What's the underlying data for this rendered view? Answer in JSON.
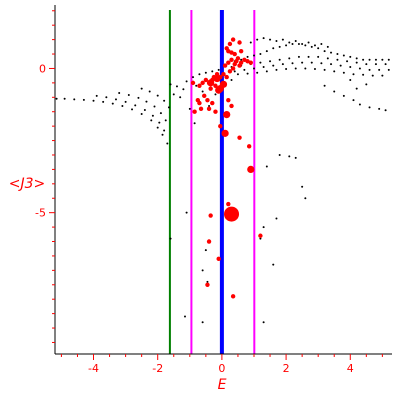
{
  "chart_data": {
    "type": "scatter",
    "xlabel": "E",
    "ylabel": "<J3>",
    "xlim": [
      -5.2,
      5.3
    ],
    "ylim": [
      -9.9,
      2.2
    ],
    "x_ticks": [
      -4,
      -2,
      0,
      2,
      4
    ],
    "y_ticks": [
      0,
      -5
    ],
    "colors": {
      "axis": "#ff0000",
      "text": "#ff0000",
      "frame": "#000000",
      "points": "#000000",
      "highlight": "#ff0000",
      "line_green": "#008000",
      "line_magenta": "#ff00ff",
      "line_blue": "#0000ff"
    },
    "vertical_lines": [
      {
        "x": -1.62,
        "color": "#008000",
        "width": 2
      },
      {
        "x": -0.95,
        "color": "#ff00ff",
        "width": 2
      },
      {
        "x": 0.0,
        "color": "#0000ff",
        "width": 4
      },
      {
        "x": 1.01,
        "color": "#ff00ff",
        "width": 2
      }
    ],
    "series": [
      {
        "marker": "small-dot",
        "color": "#000000",
        "points": [
          [
            -5.15,
            -1.05
          ],
          [
            -4.9,
            -1.05
          ],
          [
            -4.6,
            -1.07
          ],
          [
            -4.3,
            -1.09
          ],
          [
            -4.0,
            -1.12
          ],
          [
            -3.7,
            -1.16
          ],
          [
            -3.4,
            -1.22
          ],
          [
            -3.1,
            -1.3
          ],
          [
            -2.8,
            -1.42
          ],
          [
            -2.5,
            -1.58
          ],
          [
            -2.2,
            -1.8
          ],
          [
            -2.0,
            -2.05
          ],
          [
            -1.85,
            -2.3
          ],
          [
            -1.7,
            -2.6
          ],
          [
            -3.9,
            -0.95
          ],
          [
            -3.6,
            -1.0
          ],
          [
            -3.3,
            -1.07
          ],
          [
            -3.0,
            -1.16
          ],
          [
            -2.7,
            -1.28
          ],
          [
            -2.4,
            -1.44
          ],
          [
            -2.15,
            -1.64
          ],
          [
            -1.95,
            -1.88
          ],
          [
            -1.8,
            -2.15
          ],
          [
            -3.2,
            -0.85
          ],
          [
            -2.9,
            -0.92
          ],
          [
            -2.6,
            -1.02
          ],
          [
            -2.35,
            -1.15
          ],
          [
            -2.1,
            -1.32
          ],
          [
            -1.9,
            -1.55
          ],
          [
            -1.75,
            -1.8
          ],
          [
            -2.5,
            -0.7
          ],
          [
            -2.25,
            -0.8
          ],
          [
            -2.0,
            -0.94
          ],
          [
            -1.8,
            -1.12
          ],
          [
            -1.65,
            -1.35
          ],
          [
            -1.6,
            -0.55
          ],
          [
            -1.4,
            -0.62
          ],
          [
            -1.2,
            -0.72
          ],
          [
            -1.5,
            -0.9
          ],
          [
            -1.3,
            -1.0
          ],
          [
            -1.1,
            -0.45
          ],
          [
            -0.9,
            -0.3
          ],
          [
            -0.7,
            -0.2
          ],
          [
            -0.5,
            -0.15
          ],
          [
            -0.3,
            -0.1
          ],
          [
            -0.1,
            -0.05
          ],
          [
            -0.8,
            -0.6
          ],
          [
            -0.6,
            -0.8
          ],
          [
            -0.4,
            -1.3
          ],
          [
            -0.2,
            -0.9
          ],
          [
            0.1,
            -0.6
          ],
          [
            0.3,
            -0.4
          ],
          [
            -1.0,
            -1.4
          ],
          [
            -0.85,
            -1.9
          ],
          [
            0.2,
            0.2
          ],
          [
            0.4,
            0.25
          ],
          [
            0.6,
            0.3
          ],
          [
            0.8,
            0.4
          ],
          [
            1.0,
            0.45
          ],
          [
            1.2,
            0.5
          ],
          [
            1.4,
            0.6
          ],
          [
            1.6,
            0.7
          ],
          [
            1.8,
            0.75
          ],
          [
            2.0,
            0.8
          ],
          [
            2.2,
            0.85
          ],
          [
            2.4,
            0.85
          ],
          [
            2.6,
            0.8
          ],
          [
            2.8,
            0.75
          ],
          [
            3.0,
            0.7
          ],
          [
            3.2,
            0.6
          ],
          [
            3.4,
            0.55
          ],
          [
            3.6,
            0.5
          ],
          [
            3.8,
            0.45
          ],
          [
            4.0,
            0.4
          ],
          [
            4.2,
            0.35
          ],
          [
            4.4,
            0.3
          ],
          [
            4.6,
            0.3
          ],
          [
            4.8,
            0.3
          ],
          [
            5.0,
            0.3
          ],
          [
            5.2,
            0.3
          ],
          [
            0.3,
            0.05
          ],
          [
            0.6,
            0.1
          ],
          [
            0.9,
            0.15
          ],
          [
            1.2,
            0.2
          ],
          [
            1.5,
            0.25
          ],
          [
            1.8,
            0.3
          ],
          [
            2.1,
            0.35
          ],
          [
            2.4,
            0.4
          ],
          [
            2.7,
            0.4
          ],
          [
            3.0,
            0.4
          ],
          [
            3.3,
            0.35
          ],
          [
            3.6,
            0.3
          ],
          [
            3.9,
            0.25
          ],
          [
            4.2,
            0.2
          ],
          [
            4.5,
            0.15
          ],
          [
            4.8,
            0.15
          ],
          [
            5.1,
            0.15
          ],
          [
            0.4,
            -0.1
          ],
          [
            0.7,
            -0.05
          ],
          [
            1.0,
            0.0
          ],
          [
            1.3,
            0.05
          ],
          [
            1.6,
            0.1
          ],
          [
            1.9,
            0.15
          ],
          [
            2.2,
            0.18
          ],
          [
            2.5,
            0.2
          ],
          [
            2.8,
            0.2
          ],
          [
            3.1,
            0.18
          ],
          [
            3.4,
            0.15
          ],
          [
            3.7,
            0.1
          ],
          [
            4.0,
            0.05
          ],
          [
            4.3,
            0.0
          ],
          [
            4.6,
            -0.05
          ],
          [
            4.9,
            -0.05
          ],
          [
            5.2,
            -0.05
          ],
          [
            0.5,
            -0.2
          ],
          [
            0.8,
            -0.18
          ],
          [
            1.1,
            -0.15
          ],
          [
            1.4,
            -0.1
          ],
          [
            1.7,
            -0.05
          ],
          [
            2.0,
            -0.02
          ],
          [
            2.3,
            0.0
          ],
          [
            2.6,
            0.0
          ],
          [
            2.9,
            -0.02
          ],
          [
            3.2,
            -0.05
          ],
          [
            3.5,
            -0.1
          ],
          [
            3.8,
            -0.15
          ],
          [
            4.1,
            -0.2
          ],
          [
            4.4,
            -0.22
          ],
          [
            4.7,
            -0.25
          ],
          [
            5.0,
            -0.25
          ],
          [
            0.9,
            0.9
          ],
          [
            1.1,
            1.0
          ],
          [
            1.3,
            1.05
          ],
          [
            1.5,
            1.0
          ],
          [
            1.7,
            0.95
          ],
          [
            1.9,
            1.0
          ],
          [
            2.1,
            0.9
          ],
          [
            2.3,
            0.95
          ],
          [
            2.5,
            0.85
          ],
          [
            2.7,
            0.9
          ],
          [
            2.9,
            0.8
          ],
          [
            3.1,
            0.85
          ],
          [
            3.3,
            0.75
          ],
          [
            3.2,
            -0.6
          ],
          [
            3.5,
            -0.8
          ],
          [
            3.8,
            -0.95
          ],
          [
            4.1,
            -1.1
          ],
          [
            4.3,
            -1.25
          ],
          [
            4.6,
            -1.35
          ],
          [
            4.9,
            -1.4
          ],
          [
            5.1,
            -1.45
          ],
          [
            4.2,
            -0.7
          ],
          [
            4.5,
            -0.55
          ],
          [
            4.0,
            -0.4
          ],
          [
            1.8,
            -3.0
          ],
          [
            2.1,
            -3.05
          ],
          [
            2.3,
            -3.1
          ],
          [
            1.4,
            -3.4
          ],
          [
            2.5,
            -4.1
          ],
          [
            2.6,
            -4.5
          ],
          [
            -1.1,
            -5.0
          ],
          [
            1.7,
            -5.2
          ],
          [
            1.3,
            -5.5
          ],
          [
            1.2,
            -5.9
          ],
          [
            -1.6,
            -5.9
          ],
          [
            -0.5,
            -6.3
          ],
          [
            1.6,
            -6.8
          ],
          [
            -0.6,
            -7.0
          ],
          [
            -0.45,
            -7.4
          ],
          [
            -1.15,
            -8.6
          ],
          [
            -0.6,
            -8.8
          ],
          [
            1.3,
            -8.8
          ]
        ]
      },
      {
        "marker": "red-dot",
        "color": "#ff0000",
        "points": [
          [
            -0.9,
            -0.5
          ],
          [
            -0.7,
            -0.6
          ],
          [
            -0.6,
            -0.5
          ],
          [
            -0.5,
            -0.4
          ],
          [
            -0.4,
            -0.5
          ],
          [
            -0.35,
            -0.7
          ],
          [
            -0.3,
            -0.4
          ],
          [
            -0.25,
            -0.3
          ],
          [
            -0.2,
            -0.6
          ],
          [
            -0.15,
            -0.2
          ],
          [
            -0.1,
            -0.8
          ],
          [
            -0.05,
            -0.3
          ],
          [
            0.05,
            -0.2
          ],
          [
            0.1,
            0.1
          ],
          [
            0.15,
            -0.3
          ],
          [
            0.2,
            0.2
          ],
          [
            0.25,
            -0.1
          ],
          [
            0.3,
            0.3
          ],
          [
            0.35,
            0.0
          ],
          [
            0.4,
            0.15
          ],
          [
            0.45,
            0.25
          ],
          [
            0.5,
            0.35
          ],
          [
            0.55,
            0.1
          ],
          [
            0.6,
            0.2
          ],
          [
            0.7,
            0.3
          ],
          [
            0.2,
            0.6
          ],
          [
            0.25,
            0.85
          ],
          [
            0.35,
            1.0
          ],
          [
            0.4,
            0.5
          ],
          [
            0.6,
            0.6
          ],
          [
            0.55,
            0.9
          ],
          [
            0.8,
            0.25
          ],
          [
            0.9,
            0.2
          ],
          [
            0.15,
            0.7
          ],
          [
            0.3,
            0.55
          ],
          [
            -0.55,
            -0.95
          ],
          [
            -0.45,
            -1.1
          ],
          [
            -0.4,
            -1.4
          ],
          [
            -0.3,
            -1.2
          ],
          [
            -0.2,
            -1.5
          ],
          [
            0.2,
            -1.1
          ],
          [
            0.3,
            -1.3
          ],
          [
            -0.75,
            -1.1
          ],
          [
            -0.7,
            -1.2
          ],
          [
            -0.65,
            -1.4
          ],
          [
            -0.85,
            -1.5
          ],
          [
            -0.05,
            -2.0
          ],
          [
            0.55,
            -2.4
          ],
          [
            0.85,
            -2.7
          ],
          [
            0.9,
            -3.5
          ],
          [
            0.2,
            -4.7
          ],
          [
            -0.4,
            -6.0
          ],
          [
            -0.35,
            -5.1
          ],
          [
            0.45,
            -5.1
          ],
          [
            -0.1,
            -6.6
          ],
          [
            1.2,
            -5.8
          ],
          [
            -0.45,
            -7.5
          ],
          [
            0.35,
            -7.9
          ]
        ]
      },
      {
        "marker": "red-large",
        "color": "#ff0000",
        "points": [
          [
            -0.35,
            -0.5
          ],
          [
            -0.15,
            -0.35
          ],
          [
            -0.05,
            -0.7
          ],
          [
            0.05,
            -0.55
          ],
          [
            -0.1,
            -0.75
          ],
          [
            0.15,
            -1.6
          ],
          [
            0.1,
            -2.25
          ],
          [
            0.3,
            -5.05
          ],
          [
            0.9,
            -3.5
          ]
        ]
      }
    ]
  }
}
